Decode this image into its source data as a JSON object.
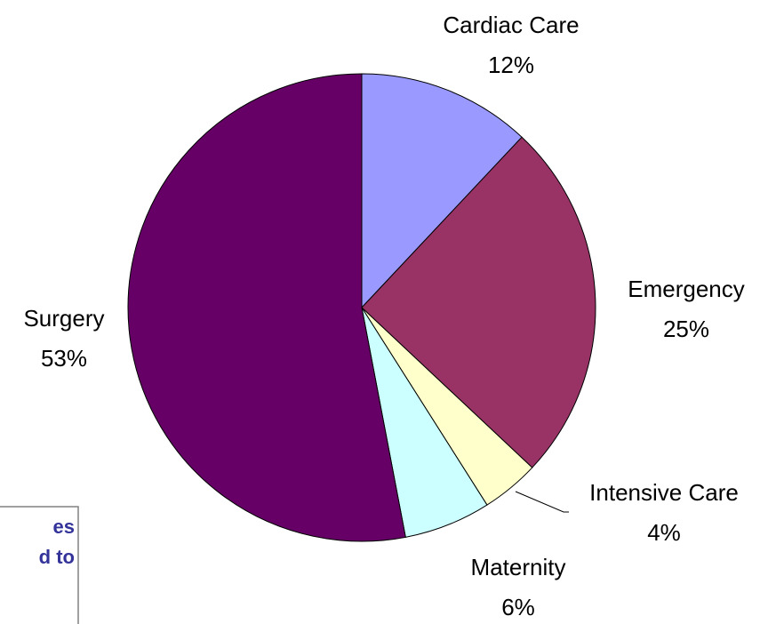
{
  "chart_data": {
    "type": "pie",
    "categories": [
      "Cardiac Care",
      "Emergency",
      "Intensive Care",
      "Maternity",
      "Surgery"
    ],
    "values": [
      12,
      25,
      4,
      6,
      53
    ],
    "value_labels": [
      "12%",
      "25%",
      "4%",
      "6%",
      "53%"
    ],
    "colors": [
      "#9999ff",
      "#993366",
      "#ffffcc",
      "#ccffff",
      "#660066"
    ],
    "annotation": [
      "es",
      "d to"
    ]
  }
}
